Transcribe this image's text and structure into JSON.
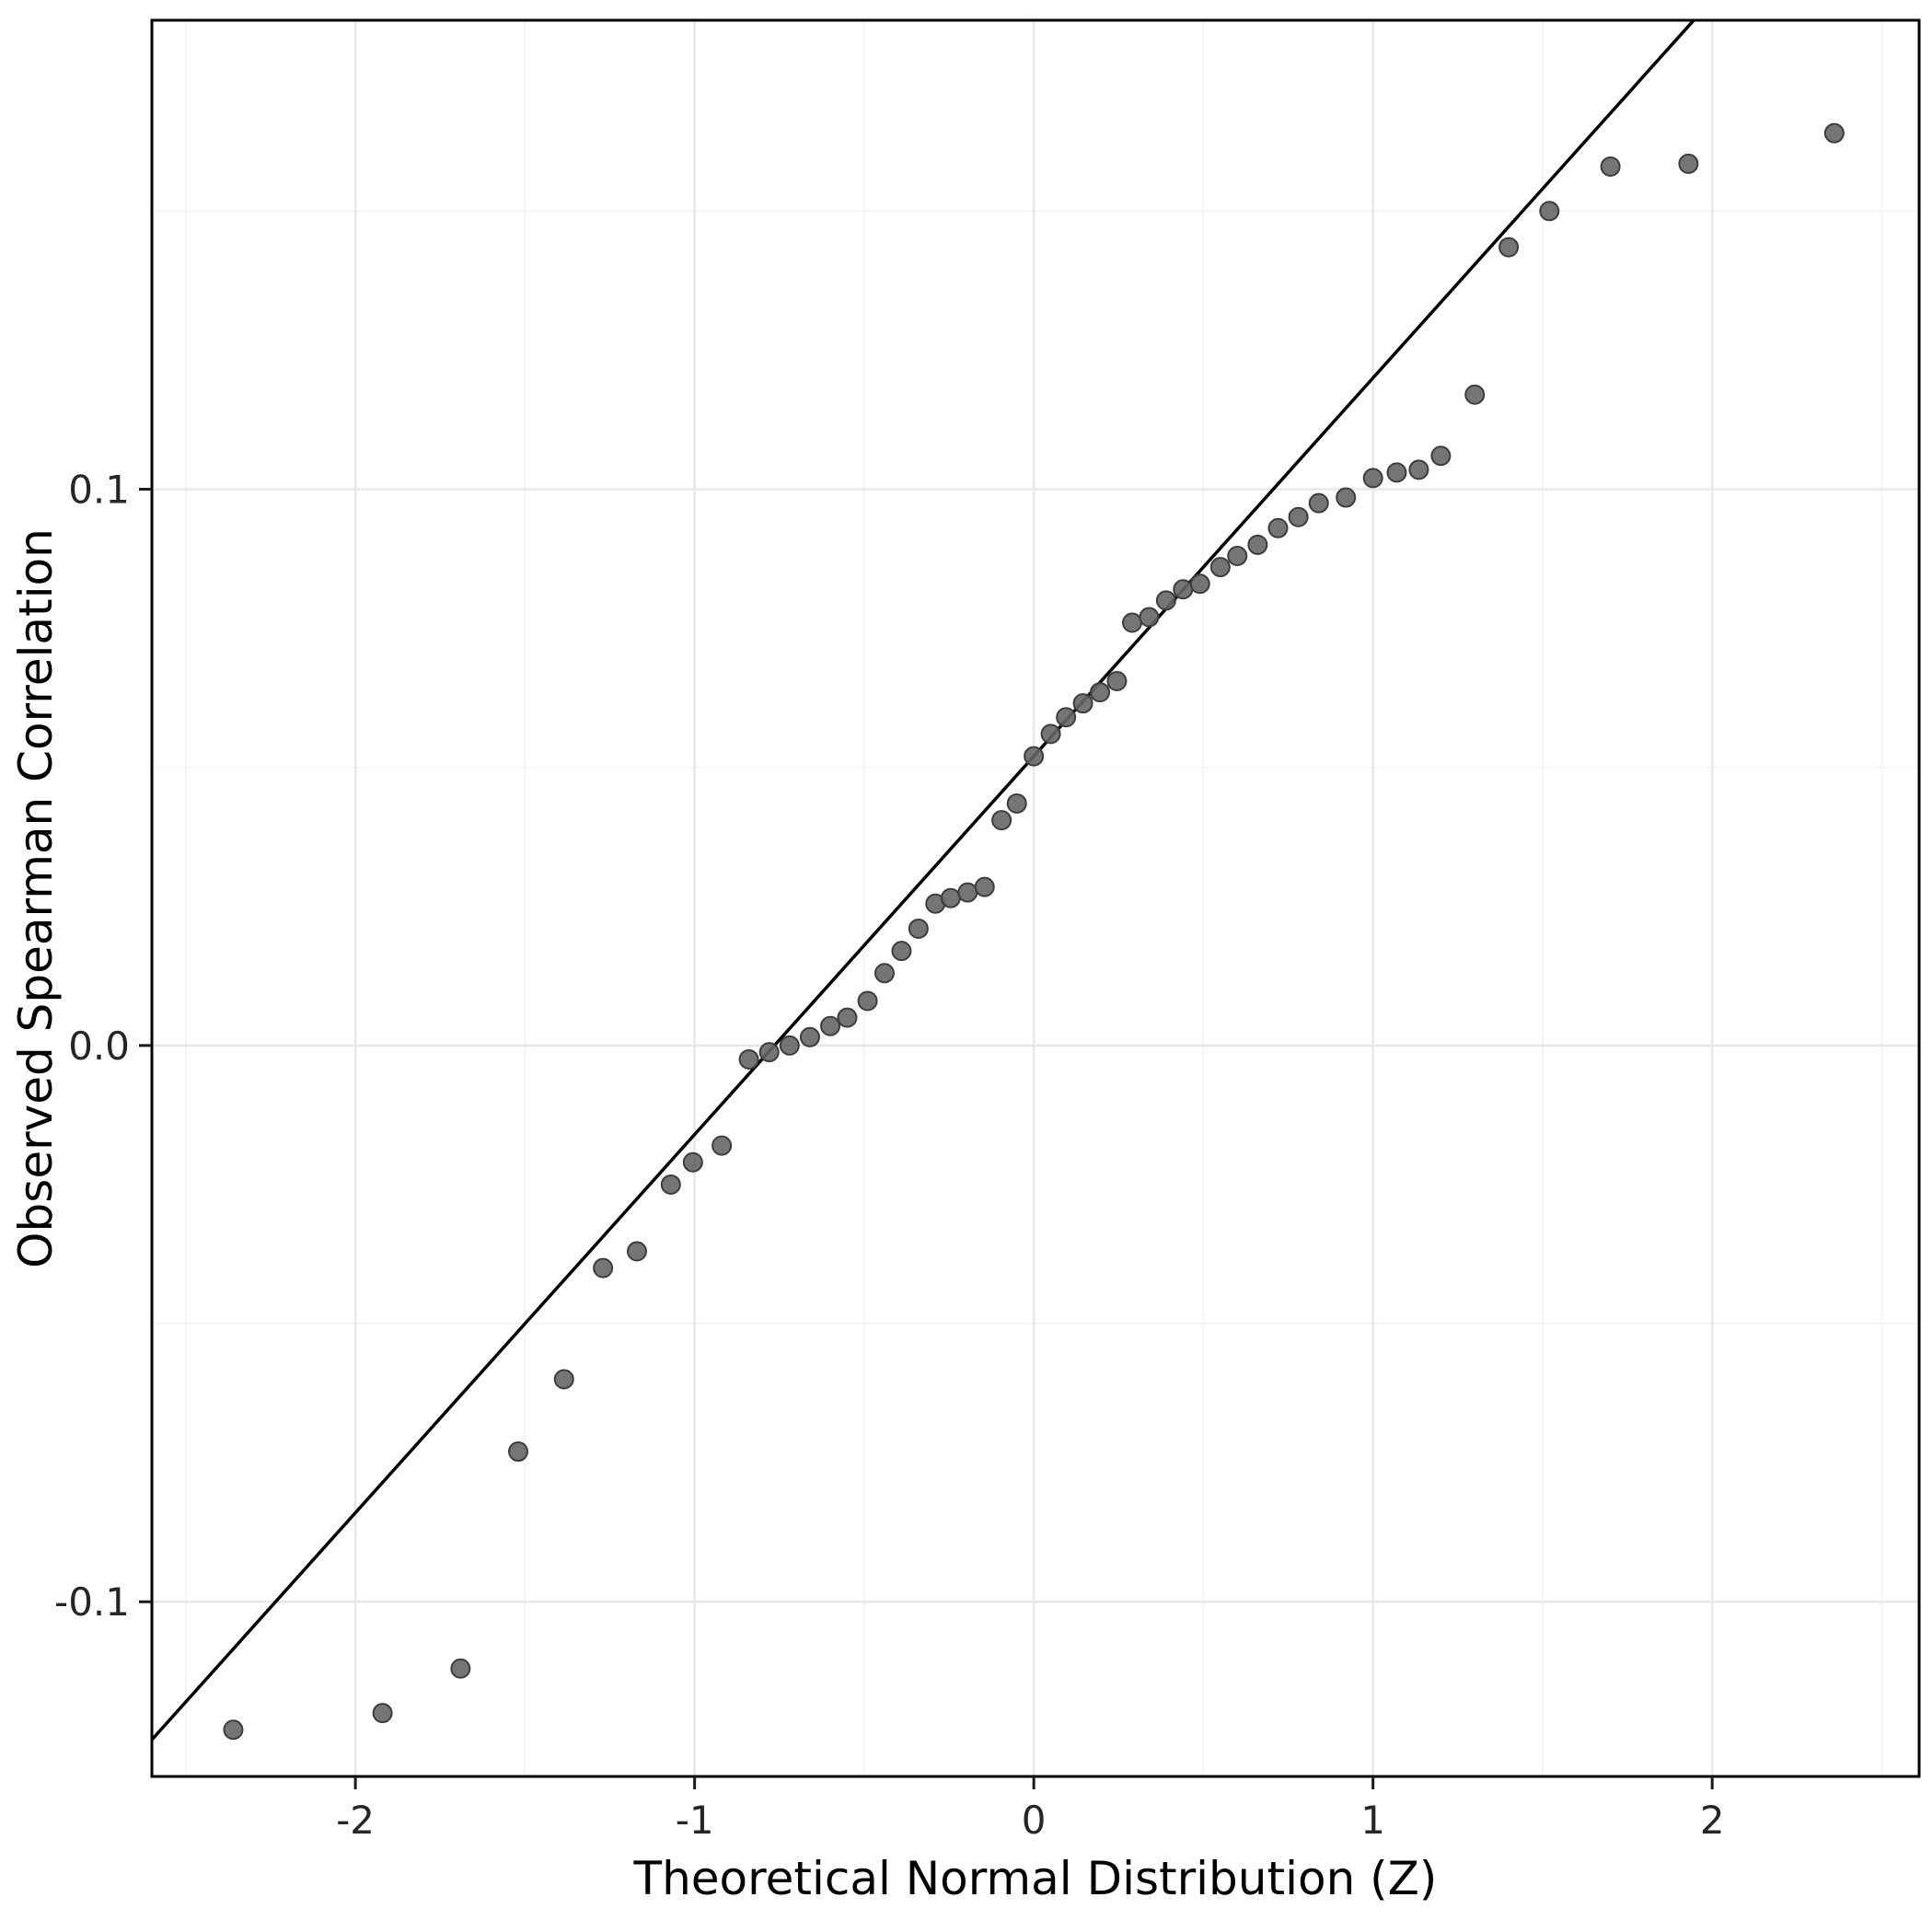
{
  "chart_data": {
    "type": "scatter",
    "title": "",
    "xlabel": "Theoretical Normal Distribution (Z)",
    "ylabel": "Observed Spearman Correlation",
    "xlim": [
      -2.6,
      2.61
    ],
    "ylim": [
      -0.1314,
      0.1843
    ],
    "x_ticks": [
      -2,
      -1,
      0,
      1,
      2
    ],
    "x_tick_labels": [
      "-2",
      "-1",
      "0",
      "1",
      "2"
    ],
    "y_ticks": [
      -0.1,
      0.0,
      0.1
    ],
    "y_tick_labels": [
      "-0.1",
      "0.0",
      "0.1"
    ],
    "x_minor_ticks": [
      -2.5,
      -1.5,
      -0.5,
      0.5,
      1.5,
      2.5
    ],
    "y_minor_ticks": [
      -0.05,
      0.05,
      0.15
    ],
    "grid": "on",
    "legend": "none",
    "panel": {
      "background": "#ffffff",
      "border_color": "#000000",
      "border_width": 3,
      "grid_major_color": "#e7e7e7",
      "grid_minor_color": "#f4f4f4",
      "tick_color": "#1a1a1a",
      "tick_length": 14
    },
    "reference_line": {
      "slope": 0.068,
      "intercept": 0.052,
      "color": "#000000",
      "width": 3.5
    },
    "points_style": {
      "radius": 10,
      "fill": "#666666",
      "stroke": "#3d3d3d",
      "stroke_width": 2,
      "opacity": 0.9
    },
    "series": [
      {
        "name": "observed-vs-theoretical-quantiles",
        "points": [
          [
            -2.36,
            -0.123
          ],
          [
            -1.92,
            -0.12
          ],
          [
            -1.69,
            -0.112
          ],
          [
            -1.52,
            -0.073
          ],
          [
            -1.385,
            -0.06
          ],
          [
            -1.27,
            -0.04
          ],
          [
            -1.17,
            -0.037
          ],
          [
            -1.07,
            -0.025
          ],
          [
            -1.005,
            -0.021
          ],
          [
            -0.92,
            -0.018
          ],
          [
            -0.84,
            -0.0025
          ],
          [
            -0.78,
            -0.0012
          ],
          [
            -0.72,
            0.0
          ],
          [
            -0.66,
            0.0015
          ],
          [
            -0.6,
            0.0035
          ],
          [
            -0.55,
            0.005
          ],
          [
            -0.49,
            0.008
          ],
          [
            -0.44,
            0.013
          ],
          [
            -0.39,
            0.017
          ],
          [
            -0.34,
            0.021
          ],
          [
            -0.29,
            0.0255
          ],
          [
            -0.245,
            0.0265
          ],
          [
            -0.195,
            0.0275
          ],
          [
            -0.145,
            0.0285
          ],
          [
            -0.095,
            0.0405
          ],
          [
            -0.05,
            0.0435
          ],
          [
            0.0,
            0.052
          ],
          [
            0.05,
            0.056
          ],
          [
            0.095,
            0.059
          ],
          [
            0.145,
            0.0615
          ],
          [
            0.195,
            0.0635
          ],
          [
            0.245,
            0.0655
          ],
          [
            0.29,
            0.076
          ],
          [
            0.34,
            0.077
          ],
          [
            0.39,
            0.08
          ],
          [
            0.44,
            0.082
          ],
          [
            0.49,
            0.083
          ],
          [
            0.55,
            0.086
          ],
          [
            0.6,
            0.088
          ],
          [
            0.66,
            0.09
          ],
          [
            0.72,
            0.093
          ],
          [
            0.78,
            0.095
          ],
          [
            0.84,
            0.0975
          ],
          [
            0.92,
            0.0985
          ],
          [
            1.0,
            0.102
          ],
          [
            1.07,
            0.103
          ],
          [
            1.135,
            0.1035
          ],
          [
            1.2,
            0.106
          ],
          [
            1.3,
            0.117
          ],
          [
            1.4,
            0.1435
          ],
          [
            1.52,
            0.15
          ],
          [
            1.7,
            0.158
          ],
          [
            1.93,
            0.1585
          ],
          [
            2.36,
            0.164
          ]
        ]
      }
    ]
  }
}
